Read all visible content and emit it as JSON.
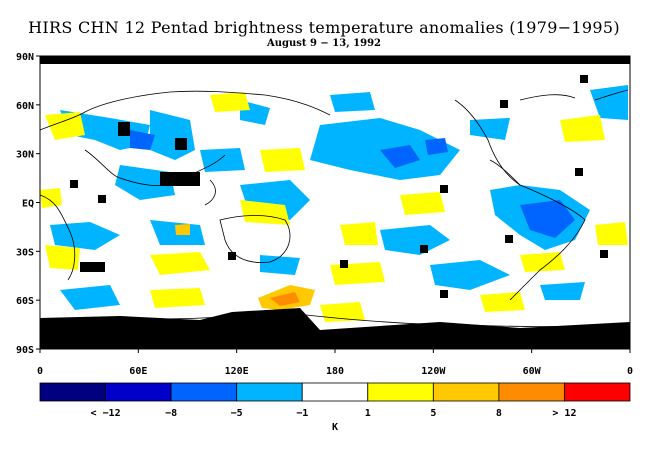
{
  "title": "HIRS CHN 12 Pentad brightness temperature anomalies (1979−1995)",
  "subtitle": "August 9 − 13, 1992",
  "lat_labels": [
    "90N",
    "60N",
    "30N",
    "EQ",
    "30S",
    "60S",
    "90S"
  ],
  "lon_labels": [
    "0",
    "60E",
    "120E",
    "180",
    "120W",
    "60W",
    "0"
  ],
  "colorbar": {
    "colors": [
      "#000080",
      "#0000c8",
      "#0064ff",
      "#00b4ff",
      "#ffffff",
      "#ffff00",
      "#ffc800",
      "#ff8c00",
      "#ff0000"
    ],
    "tick_labels": [
      "< −12",
      "−8",
      "−5",
      "−1",
      "1",
      "5",
      "8",
      "> 12"
    ],
    "unit": "K"
  },
  "legend_semantics": {
    "missing_data": "#000000",
    "coastlines": "#000000"
  }
}
